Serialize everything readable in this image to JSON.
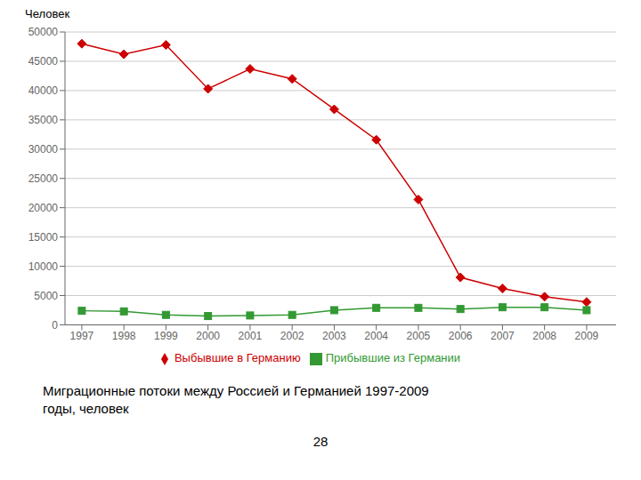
{
  "chart_data": {
    "type": "line",
    "ylabel": "Человек",
    "x": [
      1997,
      1998,
      1999,
      2000,
      2001,
      2002,
      2003,
      2004,
      2005,
      2006,
      2007,
      2008,
      2009
    ],
    "series": [
      {
        "name": "Выбывшие в Германию",
        "color": "#cc0000",
        "marker": "diamond",
        "values": [
          48000,
          46200,
          47800,
          40300,
          43700,
          42000,
          36800,
          31600,
          21400,
          8100,
          6200,
          4800,
          3900
        ]
      },
      {
        "name": "Прибывшие  из Германии",
        "color": "#339933",
        "marker": "square",
        "values": [
          2400,
          2300,
          1700,
          1500,
          1600,
          1700,
          2500,
          2900,
          2900,
          2700,
          3000,
          3000,
          2500
        ]
      }
    ],
    "xlim": [
      1996.6,
      2009.7
    ],
    "xticks": [
      1997,
      1998,
      1999,
      2000,
      2001,
      2002,
      2003,
      2004,
      2005,
      2006,
      2007,
      2008,
      2009
    ],
    "ylim": [
      0,
      50000
    ],
    "yticks": [
      0,
      5000,
      10000,
      15000,
      20000,
      25000,
      30000,
      35000,
      40000,
      45000,
      50000
    ],
    "grid": "y",
    "legend": "bottom",
    "annotations": [
      "Миграционные потоки между Россией и Германией 1997-2009\nгоды, человек",
      "28"
    ]
  }
}
